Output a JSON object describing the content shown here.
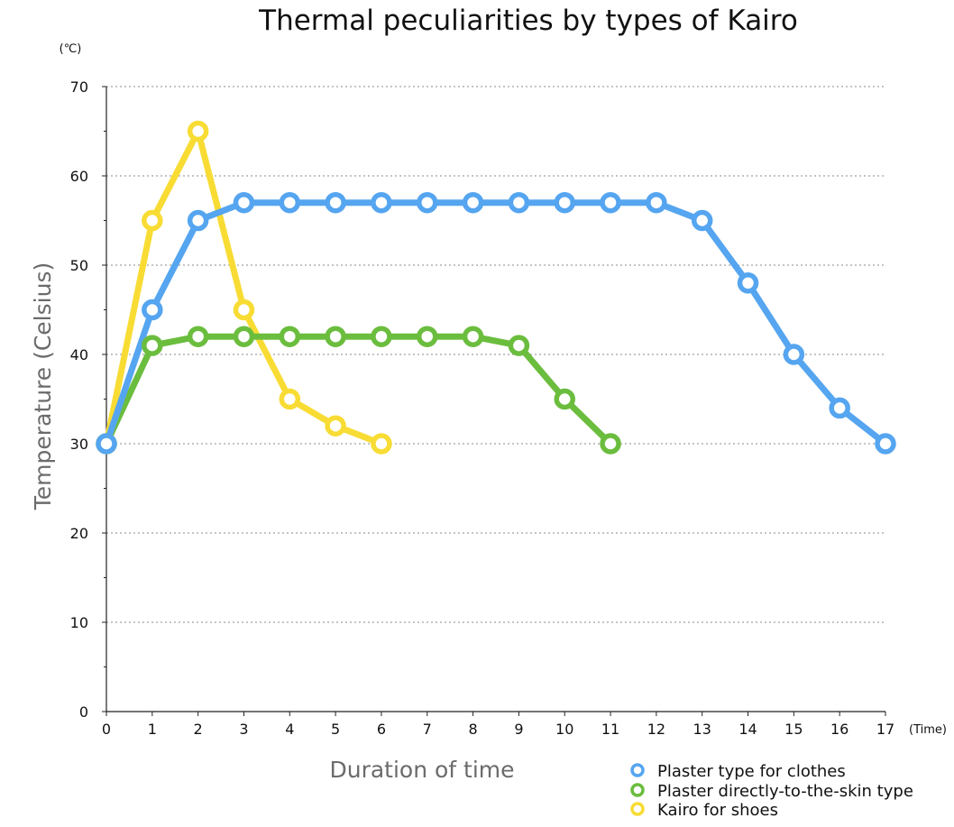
{
  "chart_data": {
    "type": "line",
    "title": "Thermal peculiarities by types of Kairo",
    "xlabel": "Duration of time",
    "ylabel": "Temperature (Celsius)",
    "x_unit": "(Time)",
    "y_unit": "(℃)",
    "xlim": [
      0,
      17
    ],
    "ylim": [
      0,
      70
    ],
    "x_ticks": [
      0,
      1,
      2,
      3,
      4,
      5,
      6,
      7,
      8,
      9,
      10,
      11,
      12,
      13,
      14,
      15,
      16,
      17
    ],
    "y_ticks": [
      0,
      10,
      20,
      30,
      40,
      50,
      60,
      70
    ],
    "grid": "horizontal dotted",
    "legend": "bottom-right",
    "series": [
      {
        "name": "Plaster type for clothes",
        "color": "#55a5f0",
        "x": [
          0,
          1,
          2,
          3,
          4,
          5,
          6,
          7,
          8,
          9,
          10,
          11,
          12,
          13,
          14,
          15,
          16,
          17
        ],
        "values": [
          30,
          45,
          55,
          57,
          57,
          57,
          57,
          57,
          57,
          57,
          57,
          57,
          57,
          55,
          48,
          40,
          34,
          30
        ]
      },
      {
        "name": "Plaster directly-to-the-skin type",
        "color": "#6bbd3e",
        "x": [
          0,
          1,
          2,
          3,
          4,
          5,
          6,
          7,
          8,
          9,
          10,
          11
        ],
        "values": [
          30,
          41,
          42,
          42,
          42,
          42,
          42,
          42,
          42,
          41,
          35,
          30
        ]
      },
      {
        "name": "Kairo for shoes",
        "color": "#f8dc34",
        "x": [
          0,
          1,
          2,
          3,
          4,
          5,
          6
        ],
        "values": [
          30,
          55,
          65,
          45,
          35,
          32,
          30
        ]
      }
    ]
  }
}
